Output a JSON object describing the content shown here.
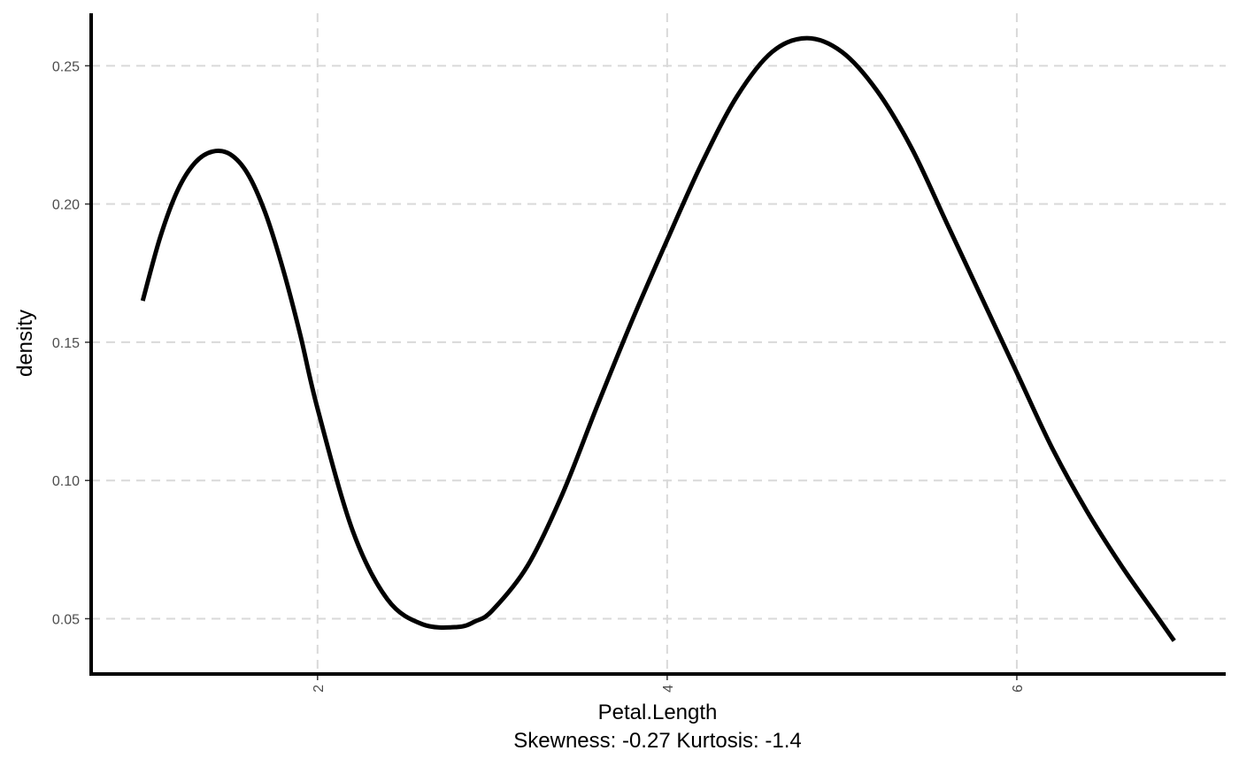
{
  "chart_data": {
    "type": "line",
    "xlabel": "Petal.Length",
    "subtitle": "Skewness: -0.27 Kurtosis: -1.4",
    "ylabel": "density",
    "xlim": [
      0.705,
      7.195
    ],
    "ylim": [
      0.03,
      0.269
    ],
    "x_ticks": [
      2,
      4,
      6
    ],
    "x_tick_labels": [
      "2",
      "4",
      "6"
    ],
    "y_ticks": [
      0.05,
      0.1,
      0.15,
      0.2,
      0.25
    ],
    "y_tick_labels": [
      "0.05",
      "0.10",
      "0.15",
      "0.20",
      "0.25"
    ],
    "grid": true,
    "series": [
      {
        "x": [
          1.0,
          1.1,
          1.2,
          1.3,
          1.4,
          1.5,
          1.6,
          1.7,
          1.8,
          1.9,
          2.0,
          2.2,
          2.4,
          2.6,
          2.8,
          2.9,
          3.0,
          3.2,
          3.4,
          3.6,
          3.8,
          4.0,
          4.2,
          4.4,
          4.6,
          4.8,
          5.0,
          5.2,
          5.4,
          5.6,
          5.8,
          6.0,
          6.2,
          6.4,
          6.6,
          6.8,
          6.9
        ],
        "y": [
          0.165,
          0.188,
          0.205,
          0.215,
          0.219,
          0.218,
          0.211,
          0.197,
          0.177,
          0.153,
          0.126,
          0.082,
          0.057,
          0.048,
          0.047,
          0.049,
          0.053,
          0.069,
          0.095,
          0.127,
          0.158,
          0.187,
          0.215,
          0.239,
          0.255,
          0.26,
          0.255,
          0.241,
          0.22,
          0.193,
          0.166,
          0.139,
          0.112,
          0.089,
          0.069,
          0.051,
          0.042
        ]
      }
    ]
  }
}
